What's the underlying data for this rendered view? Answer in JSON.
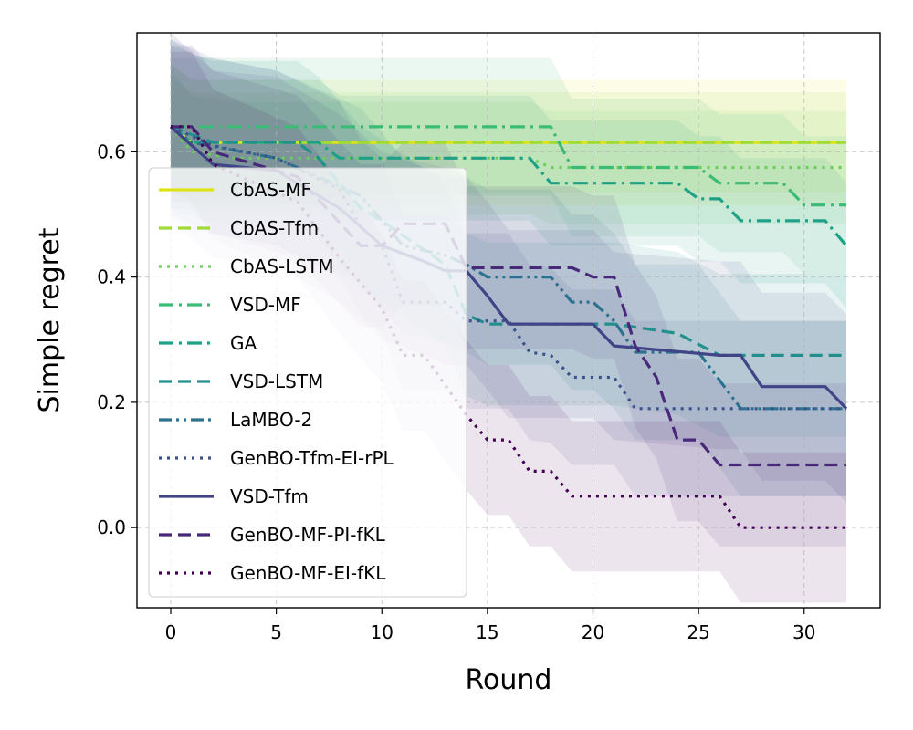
{
  "chart_data": {
    "type": "line",
    "title": "",
    "xlabel": "Round",
    "ylabel": "Simple regret",
    "xlim": [
      -1.6,
      33.6
    ],
    "ylim": [
      -0.128,
      0.79
    ],
    "xticks": [
      0,
      5,
      10,
      15,
      20,
      25,
      30
    ],
    "yticks": [
      0.0,
      0.2,
      0.4,
      0.6
    ],
    "xtick_labels": [
      "0",
      "5",
      "10",
      "15",
      "20",
      "25",
      "30"
    ],
    "ytick_labels": [
      "0.0",
      "0.2",
      "0.4",
      "0.6"
    ],
    "grid": true,
    "legend_position": "left",
    "series": [
      {
        "name": "CbAS-MF",
        "color": "#dde318",
        "dash": "solid",
        "band": 0.1,
        "points": [
          [
            0,
            0.64
          ],
          [
            1,
            0.615
          ],
          [
            32,
            0.615
          ]
        ]
      },
      {
        "name": "CbAS-Tfm",
        "color": "#a0da39",
        "dash": "dashed",
        "band": 0.08,
        "points": [
          [
            0,
            0.64
          ],
          [
            1,
            0.615
          ],
          [
            32,
            0.615
          ]
        ]
      },
      {
        "name": "CbAS-LSTM",
        "color": "#6ccd5a",
        "dash": "dotted",
        "band": 0.09,
        "points": [
          [
            0,
            0.64
          ],
          [
            1,
            0.6
          ],
          [
            3,
            0.59
          ],
          [
            17,
            0.59
          ],
          [
            18,
            0.575
          ],
          [
            32,
            0.575
          ]
        ]
      },
      {
        "name": "VSD-MF",
        "color": "#3bbb75",
        "dash": "dashdot",
        "band": 0.11,
        "points": [
          [
            0,
            0.64
          ],
          [
            18,
            0.64
          ],
          [
            19,
            0.575
          ],
          [
            25,
            0.575
          ],
          [
            26,
            0.55
          ],
          [
            29,
            0.55
          ],
          [
            30,
            0.515
          ],
          [
            32,
            0.515
          ]
        ]
      },
      {
        "name": "GA",
        "color": "#1fa187",
        "dash": "dashdot",
        "band": 0.1,
        "points": [
          [
            0,
            0.64
          ],
          [
            1,
            0.615
          ],
          [
            7,
            0.615
          ],
          [
            8,
            0.59
          ],
          [
            17,
            0.59
          ],
          [
            18,
            0.55
          ],
          [
            24,
            0.55
          ],
          [
            25,
            0.525
          ],
          [
            26,
            0.525
          ],
          [
            27,
            0.49
          ],
          [
            31,
            0.49
          ],
          [
            32,
            0.45
          ]
        ]
      },
      {
        "name": "VSD-LSTM",
        "color": "#21908d",
        "dash": "dashed",
        "band": 0.13,
        "points": [
          [
            0,
            0.64
          ],
          [
            2,
            0.615
          ],
          [
            6,
            0.615
          ],
          [
            7,
            0.59
          ],
          [
            8,
            0.55
          ],
          [
            9,
            0.51
          ],
          [
            10,
            0.49
          ],
          [
            13,
            0.42
          ],
          [
            14,
            0.34
          ],
          [
            15,
            0.325
          ],
          [
            21,
            0.325
          ],
          [
            24,
            0.31
          ],
          [
            26,
            0.275
          ],
          [
            32,
            0.275
          ]
        ]
      },
      {
        "name": "LaMBO-2",
        "color": "#2c728e",
        "dash": "dashdotdot",
        "band": 0.14,
        "points": [
          [
            0,
            0.64
          ],
          [
            1,
            0.615
          ],
          [
            5,
            0.59
          ],
          [
            9,
            0.53
          ],
          [
            11,
            0.45
          ],
          [
            13,
            0.435
          ],
          [
            14,
            0.42
          ],
          [
            15,
            0.4
          ],
          [
            18,
            0.4
          ],
          [
            19,
            0.36
          ],
          [
            20,
            0.36
          ],
          [
            21,
            0.33
          ],
          [
            22,
            0.28
          ],
          [
            25,
            0.28
          ],
          [
            27,
            0.19
          ],
          [
            32,
            0.19
          ]
        ]
      },
      {
        "name": "GenBO-Tfm-EI-rPL",
        "color": "#3b528b",
        "dash": "dotted",
        "band": 0.14,
        "points": [
          [
            0,
            0.64
          ],
          [
            2,
            0.61
          ],
          [
            5,
            0.59
          ],
          [
            8,
            0.54
          ],
          [
            9,
            0.48
          ],
          [
            10,
            0.45
          ],
          [
            11,
            0.36
          ],
          [
            13,
            0.36
          ],
          [
            14,
            0.33
          ],
          [
            16,
            0.33
          ],
          [
            17,
            0.28
          ],
          [
            18,
            0.275
          ],
          [
            19,
            0.24
          ],
          [
            21,
            0.24
          ],
          [
            22,
            0.19
          ],
          [
            32,
            0.19
          ]
        ]
      },
      {
        "name": "VSD-Tfm",
        "color": "#414487",
        "dash": "solid",
        "band": 0.15,
        "points": [
          [
            0,
            0.64
          ],
          [
            1,
            0.61
          ],
          [
            2,
            0.58
          ],
          [
            5,
            0.57
          ],
          [
            8,
            0.51
          ],
          [
            10,
            0.45
          ],
          [
            12,
            0.425
          ],
          [
            13,
            0.41
          ],
          [
            14,
            0.41
          ],
          [
            15,
            0.37
          ],
          [
            16,
            0.325
          ],
          [
            20,
            0.325
          ],
          [
            21,
            0.29
          ],
          [
            26,
            0.275
          ],
          [
            27,
            0.275
          ],
          [
            28,
            0.225
          ],
          [
            31,
            0.225
          ],
          [
            32,
            0.19
          ]
        ]
      },
      {
        "name": "GenBO-MF-PI-fKL",
        "color": "#482878",
        "dash": "dashed",
        "band": 0.13,
        "points": [
          [
            0,
            0.64
          ],
          [
            1,
            0.64
          ],
          [
            2,
            0.6
          ],
          [
            6,
            0.56
          ],
          [
            9,
            0.45
          ],
          [
            10,
            0.45
          ],
          [
            11,
            0.485
          ],
          [
            13,
            0.485
          ],
          [
            14,
            0.415
          ],
          [
            19,
            0.415
          ],
          [
            20,
            0.4
          ],
          [
            21,
            0.4
          ],
          [
            22,
            0.29
          ],
          [
            23,
            0.24
          ],
          [
            24,
            0.14
          ],
          [
            25,
            0.14
          ],
          [
            26,
            0.1
          ],
          [
            32,
            0.1
          ]
        ]
      },
      {
        "name": "GenBO-MF-EI-fKL",
        "color": "#440154",
        "dash": "dotted",
        "band": 0.12,
        "points": [
          [
            0,
            0.64
          ],
          [
            1,
            0.64
          ],
          [
            2,
            0.58
          ],
          [
            4,
            0.55
          ],
          [
            6,
            0.52
          ],
          [
            8,
            0.43
          ],
          [
            10,
            0.35
          ],
          [
            11,
            0.275
          ],
          [
            12,
            0.275
          ],
          [
            14,
            0.18
          ],
          [
            15,
            0.14
          ],
          [
            16,
            0.14
          ],
          [
            17,
            0.09
          ],
          [
            18,
            0.09
          ],
          [
            19,
            0.05
          ],
          [
            26,
            0.05
          ],
          [
            27,
            0.0
          ],
          [
            32,
            0.0
          ]
        ]
      }
    ]
  }
}
